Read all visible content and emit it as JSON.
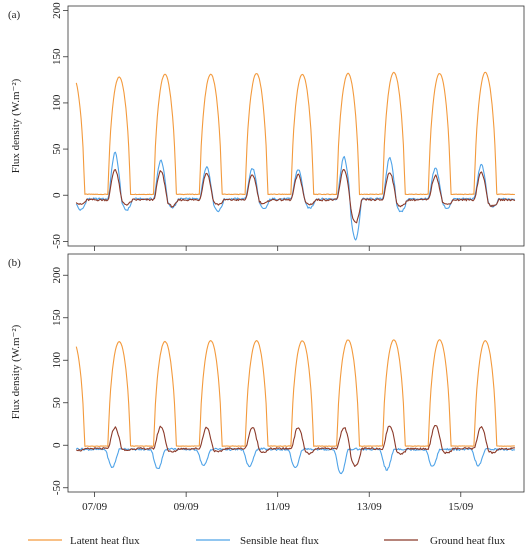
{
  "colors": {
    "latent": "#F39A3D",
    "sensible": "#4FA3E8",
    "ground": "#8B3A2A",
    "axis": "#333333"
  },
  "legend": [
    {
      "key": "latent",
      "label": "Latent heat flux"
    },
    {
      "key": "sensible",
      "label": "Sensible heat flux"
    },
    {
      "key": "ground",
      "label": "Ground heat flux"
    }
  ],
  "x_ticks": [
    "07/09",
    "09/09",
    "11/09",
    "13/09",
    "15/09"
  ],
  "chart_data": [
    {
      "type": "line",
      "panel_label": "(a)",
      "ylabel": "Flux density (W.m⁻²)",
      "ylim": [
        -55,
        205
      ],
      "yticks": [
        -50,
        0,
        50,
        100,
        150,
        200
      ],
      "x_unit": "day of September (daily peaks at ~13:00)",
      "xlim": [
        6.55,
        16.25
      ],
      "series": [
        {
          "name": "Latent heat flux",
          "key": "latent",
          "daily_peaks": [
            128,
            131,
            131,
            132,
            131,
            132,
            133,
            132,
            133
          ],
          "night_value": 1
        },
        {
          "name": "Sensible heat flux",
          "key": "sensible",
          "daily_peaks": [
            46,
            38,
            31,
            29,
            28,
            41,
            40,
            29,
            33
          ],
          "daily_troughs": [
            -16,
            -13,
            -17,
            -15,
            -14,
            -48,
            -18,
            -14,
            -13
          ],
          "night_value": -4
        },
        {
          "name": "Ground heat flux",
          "key": "ground",
          "daily_peaks": [
            28,
            26,
            24,
            22,
            22,
            28,
            25,
            21,
            25
          ],
          "daily_troughs": [
            -10,
            -12,
            -10,
            -9,
            -10,
            -30,
            -12,
            -10,
            -12
          ],
          "night_value": -5
        }
      ]
    },
    {
      "type": "line",
      "panel_label": "(b)",
      "ylabel": "Flux density (W.m⁻²)",
      "ylim": [
        -55,
        225
      ],
      "yticks": [
        -50,
        0,
        50,
        100,
        150,
        200
      ],
      "x_unit": "day of September (daily peaks at ~13:00)",
      "xlim": [
        6.55,
        16.25
      ],
      "series": [
        {
          "name": "Latent heat flux",
          "key": "latent",
          "daily_peaks": [
            122,
            122,
            123,
            123,
            123,
            124,
            124,
            124,
            123
          ],
          "night_value": -1
        },
        {
          "name": "Sensible heat flux",
          "key": "sensible",
          "daily_peaks": [
            -2,
            -2,
            -3,
            -3,
            -2,
            -3,
            -3,
            -4,
            -3
          ],
          "daily_troughs": [
            -26,
            -28,
            -24,
            -25,
            -27,
            -34,
            -29,
            -25,
            -24
          ],
          "night_value": -5
        },
        {
          "name": "Ground heat flux",
          "key": "ground",
          "daily_peaks": [
            21,
            22,
            21,
            21,
            21,
            21,
            23,
            24,
            22
          ],
          "daily_troughs": [
            -6,
            -8,
            -8,
            -8,
            -10,
            -25,
            -10,
            -9,
            -9
          ],
          "night_value": -4
        }
      ]
    }
  ]
}
